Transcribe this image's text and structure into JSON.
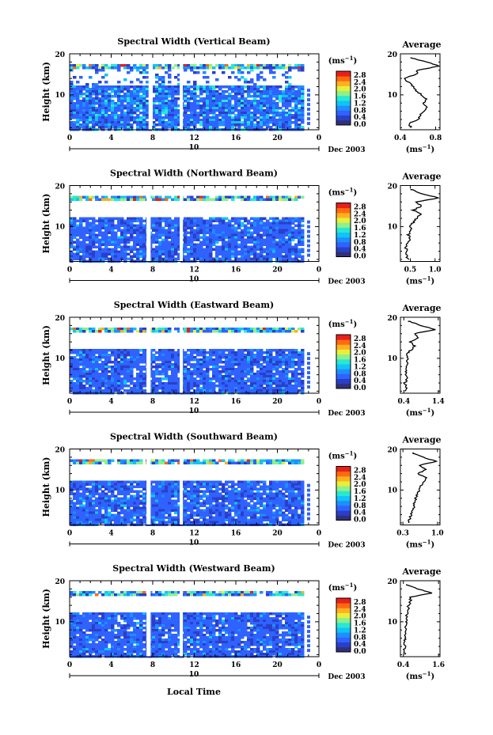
{
  "figure": {
    "y_axis_label": "Height (km)",
    "x_axis_label": "Local Time",
    "date_label": "Dec 2003",
    "day_label": "10",
    "colorbar_unit": "(ms",
    "colorbar_unit_exp": "−1",
    "average_title": "Average",
    "average_unit": "(ms",
    "average_unit_exp": "−1",
    "colorbar_ticks": [
      "0.0",
      "0.4",
      "0.8",
      "1.2",
      "1.6",
      "2.0",
      "2.4",
      "2.8"
    ],
    "colorbar_colors": [
      "#30307a",
      "#2a3fc8",
      "#2f62ff",
      "#1d8fff",
      "#12c3f5",
      "#27e8d2",
      "#8ff08a",
      "#e8ef3a",
      "#ffb020",
      "#ff6a10",
      "#e8201a"
    ],
    "plot_colors": {
      "dominant": "#2f4fd8",
      "gap": "#ffffff"
    }
  },
  "chart_data": [
    {
      "type": "heatmap",
      "title": "Spectral Width (Vertical Beam)",
      "xlabel": "Local Time",
      "ylabel": "Height (km)",
      "xlim": [
        0,
        24
      ],
      "ylim": [
        1.5,
        20
      ],
      "x_ticks": [
        "0",
        "4",
        "8",
        "12",
        "16",
        "20",
        "0"
      ],
      "y_ticks": [
        "10",
        "20"
      ],
      "color_scale": [
        0.0,
        2.8
      ],
      "data_gaps_hours": [
        [
          7.6,
          8.0
        ],
        [
          10.6,
          10.9
        ]
      ],
      "average_profile": {
        "xlabel": "(ms−1)",
        "x_ticks": [
          "0.4",
          "0.8"
        ],
        "xlim": [
          0.4,
          0.85
        ],
        "heights_km": [
          2,
          3,
          4,
          5,
          6,
          7,
          8,
          9,
          10,
          11,
          12,
          13,
          14,
          15,
          16,
          17,
          18,
          19
        ],
        "values": [
          0.52,
          0.5,
          0.6,
          0.62,
          0.68,
          0.7,
          0.66,
          0.7,
          0.64,
          0.58,
          0.54,
          0.5,
          0.44,
          0.58,
          0.6,
          0.84,
          0.7,
          0.52
        ]
      }
    },
    {
      "type": "heatmap",
      "title": "Spectral Width (Northward Beam)",
      "xlabel": "Local Time",
      "ylabel": "Height (km)",
      "xlim": [
        0,
        24
      ],
      "ylim": [
        1.5,
        20
      ],
      "x_ticks": [
        "0",
        "4",
        "8",
        "12",
        "16",
        "20",
        "0"
      ],
      "y_ticks": [
        "10",
        "20"
      ],
      "color_scale": [
        0.0,
        2.8
      ],
      "data_gaps_hours": [
        [
          7.4,
          7.8
        ],
        [
          10.6,
          10.9
        ]
      ],
      "average_profile": {
        "xlabel": "(ms−1)",
        "x_ticks": [
          "0.5",
          "1.0"
        ],
        "xlim": [
          0.3,
          1.1
        ],
        "heights_km": [
          2,
          3,
          4,
          5,
          6,
          7,
          8,
          9,
          10,
          11,
          12,
          13,
          14,
          15,
          16,
          17,
          18,
          19
        ],
        "values": [
          0.45,
          0.42,
          0.44,
          0.4,
          0.46,
          0.5,
          0.46,
          0.52,
          0.5,
          0.56,
          0.62,
          0.7,
          0.56,
          0.72,
          0.62,
          1.08,
          0.74,
          0.52
        ]
      }
    },
    {
      "type": "heatmap",
      "title": "Spectral Width (Eastward Beam)",
      "xlabel": "Local Time",
      "ylabel": "Height (km)",
      "xlim": [
        0,
        24
      ],
      "ylim": [
        1.5,
        20
      ],
      "x_ticks": [
        "0",
        "4",
        "8",
        "12",
        "16",
        "20",
        "0"
      ],
      "y_ticks": [
        "10",
        "20"
      ],
      "color_scale": [
        0.0,
        2.8
      ],
      "data_gaps_hours": [
        [
          7.4,
          7.8
        ],
        [
          10.6,
          10.9
        ]
      ],
      "average_profile": {
        "xlabel": "(ms−1)",
        "x_ticks": [
          "0.4",
          "1.4"
        ],
        "xlim": [
          0.3,
          1.45
        ],
        "heights_km": [
          2,
          3,
          4,
          5,
          6,
          7,
          8,
          9,
          10,
          11,
          12,
          13,
          14,
          15,
          16,
          17,
          18,
          19
        ],
        "values": [
          0.46,
          0.48,
          0.42,
          0.5,
          0.46,
          0.48,
          0.44,
          0.5,
          0.52,
          0.5,
          0.6,
          0.72,
          0.6,
          0.8,
          0.7,
          1.3,
          0.9,
          0.55
        ]
      }
    },
    {
      "type": "heatmap",
      "title": "Spectral Width (Southward Beam)",
      "xlabel": "Local Time",
      "ylabel": "Height (km)",
      "xlim": [
        0,
        24
      ],
      "ylim": [
        1.5,
        20
      ],
      "x_ticks": [
        "0",
        "4",
        "8",
        "12",
        "16",
        "20",
        "0"
      ],
      "y_ticks": [
        "10",
        "20"
      ],
      "color_scale": [
        0.0,
        2.8
      ],
      "data_gaps_hours": [
        [
          7.4,
          7.8
        ],
        [
          10.6,
          10.9
        ]
      ],
      "average_profile": {
        "xlabel": "(ms−1)",
        "x_ticks": [
          "0.3",
          "1.0"
        ],
        "xlim": [
          0.25,
          1.05
        ],
        "heights_km": [
          2,
          3,
          4,
          5,
          6,
          7,
          8,
          9,
          10,
          11,
          12,
          13,
          14,
          15,
          16,
          17,
          18,
          19
        ],
        "values": [
          0.42,
          0.44,
          0.46,
          0.5,
          0.52,
          0.54,
          0.56,
          0.6,
          0.62,
          0.66,
          0.72,
          0.78,
          0.6,
          0.76,
          0.62,
          0.98,
          0.7,
          0.5
        ]
      }
    },
    {
      "type": "heatmap",
      "title": "Spectral Width (Westward Beam)",
      "xlabel": "Local Time",
      "ylabel": "Height (km)",
      "xlim": [
        0,
        24
      ],
      "ylim": [
        1.5,
        20
      ],
      "x_ticks": [
        "0",
        "4",
        "8",
        "12",
        "16",
        "20",
        "0"
      ],
      "y_ticks": [
        "10",
        "20"
      ],
      "color_scale": [
        0.0,
        2.8
      ],
      "data_gaps_hours": [
        [
          7.4,
          7.8
        ],
        [
          10.6,
          10.9
        ]
      ],
      "average_profile": {
        "xlabel": "(ms−1)",
        "x_ticks": [
          "0.4",
          "1.6"
        ],
        "xlim": [
          0.3,
          1.65
        ],
        "heights_km": [
          2,
          3,
          4,
          5,
          6,
          7,
          8,
          9,
          10,
          11,
          12,
          13,
          14,
          15,
          16,
          17,
          18,
          19
        ],
        "values": [
          0.44,
          0.42,
          0.46,
          0.44,
          0.48,
          0.46,
          0.5,
          0.48,
          0.52,
          0.5,
          0.54,
          0.6,
          0.56,
          0.66,
          0.62,
          1.4,
          0.9,
          0.5
        ]
      }
    }
  ]
}
